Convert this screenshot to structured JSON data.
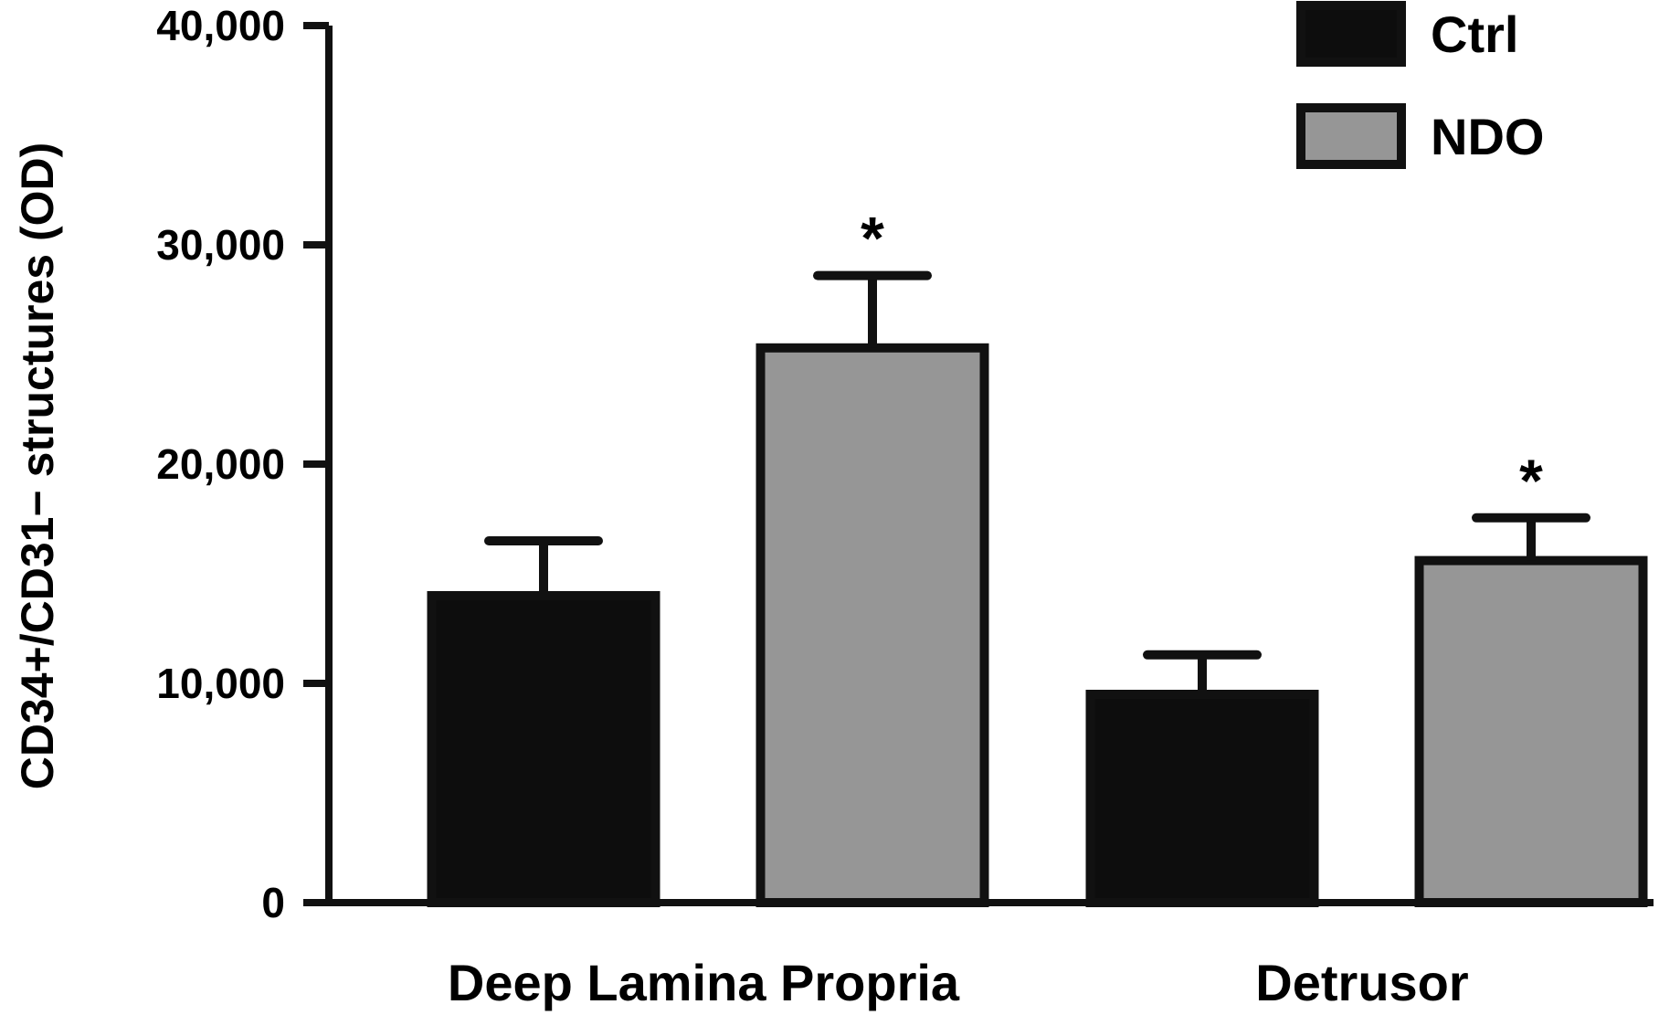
{
  "chart_data": {
    "type": "bar",
    "title": "",
    "xlabel": "",
    "ylabel": "CD34+/CD31− structures  (OD)",
    "ylim": [
      0,
      40000
    ],
    "yticks": [
      0,
      10000,
      20000,
      30000,
      40000
    ],
    "ytick_labels": [
      "0",
      "10,000",
      "20,000",
      "30,000",
      "40,000"
    ],
    "categories": [
      "Deep Lamina Propria",
      "Detrusor"
    ],
    "legend_position": "top-right",
    "grid": false,
    "series": [
      {
        "name": "Ctrl",
        "color": "#0d0d0d",
        "values": [
          14000,
          9500
        ],
        "errors": [
          2500,
          1800
        ],
        "annotations": [
          "",
          ""
        ]
      },
      {
        "name": "NDO",
        "color": "#969696",
        "values": [
          25300,
          15600
        ],
        "errors": [
          3300,
          1950
        ],
        "annotations": [
          "*",
          "*"
        ]
      }
    ]
  }
}
